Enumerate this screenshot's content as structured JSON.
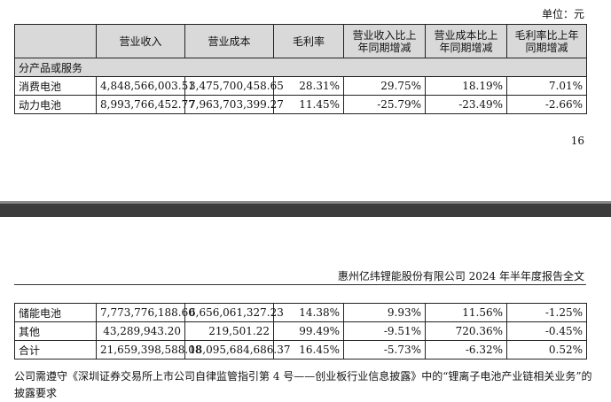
{
  "unit_label": "单位：元",
  "table1": {
    "headers": [
      "",
      "营业收入",
      "营业成本",
      "毛利率",
      "营业收入比上年同期增减",
      "营业成本比上年同期增减",
      "毛利率比上年同期增减"
    ],
    "header_lines": {
      "h4": [
        "营业收入比上",
        "年同期增减"
      ],
      "h5": [
        "营业成本比上",
        "年同期增减"
      ],
      "h6": [
        "毛利率比上年",
        "同期增减"
      ]
    },
    "section": "分产品或服务",
    "rows": [
      {
        "name": "消费电池",
        "revenue": "4,848,566,003.51",
        "cost": "3,475,700,458.65",
        "margin": "28.31%",
        "rev_change": "29.75%",
        "cost_change": "18.19%",
        "margin_change": "7.01%"
      },
      {
        "name": "动力电池",
        "revenue": "8,993,766,452.77",
        "cost": "7,963,703,399.27",
        "margin": "11.45%",
        "rev_change": "-25.79%",
        "cost_change": "-23.49%",
        "margin_change": "-2.66%"
      }
    ]
  },
  "page_number": "16",
  "doc_header": "惠州亿纬锂能股份有限公司 2024 年半年度报告全文",
  "table2": {
    "rows": [
      {
        "name": "储能电池",
        "revenue": "7,773,776,188.60",
        "cost": "6,656,061,327.23",
        "margin": "14.38%",
        "rev_change": "9.93%",
        "cost_change": "11.56%",
        "margin_change": "-1.25%"
      },
      {
        "name": "其他",
        "revenue": "43,289,943.20",
        "cost": "219,501.22",
        "margin": "99.49%",
        "rev_change": "-9.51%",
        "cost_change": "720.36%",
        "margin_change": "-0.45%"
      },
      {
        "name": "合计",
        "revenue": "21,659,398,588.08",
        "cost": "18,095,684,686.37",
        "margin": "16.45%",
        "rev_change": "-5.73%",
        "cost_change": "-6.32%",
        "margin_change": "0.52%"
      }
    ]
  },
  "note": "公司需遵守《深圳证券交易所上市公司自律监管指引第 4 号——创业板行业信息披露》中的“锂离子电池产业链相关业务”的披露要求"
}
